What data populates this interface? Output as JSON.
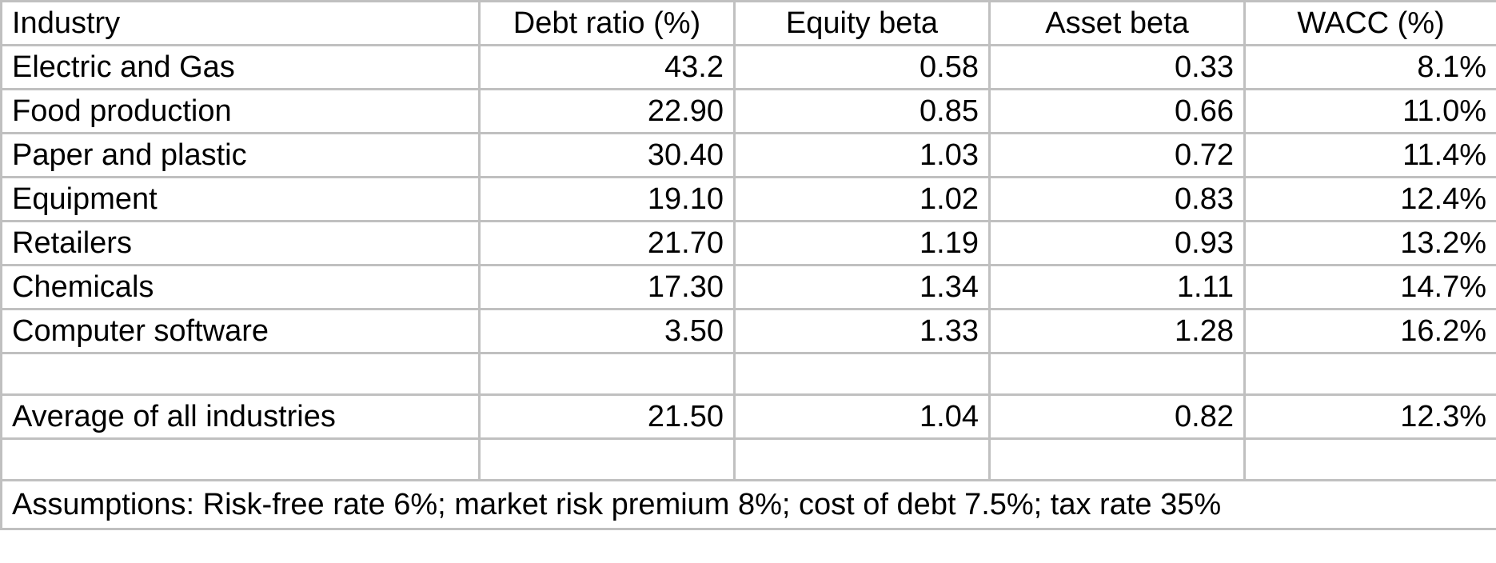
{
  "table": {
    "headers": [
      "Industry",
      "Debt ratio (%)",
      "Equity beta",
      "Asset beta",
      "WACC (%)"
    ],
    "rows": [
      [
        "Electric and Gas",
        "43.2",
        "0.58",
        "0.33",
        "8.1%"
      ],
      [
        "Food production",
        "22.90",
        "0.85",
        "0.66",
        "11.0%"
      ],
      [
        "Paper and plastic",
        "30.40",
        "1.03",
        "0.72",
        "11.4%"
      ],
      [
        "Equipment",
        "19.10",
        "1.02",
        "0.83",
        "12.4%"
      ],
      [
        "Retailers",
        "21.70",
        "1.19",
        "0.93",
        "13.2%"
      ],
      [
        "Chemicals",
        "17.30",
        "1.34",
        "1.11",
        "14.7%"
      ],
      [
        "Computer software",
        "3.50",
        "1.33",
        "1.28",
        "16.2%"
      ]
    ],
    "average_row": [
      "Average of all industries",
      "21.50",
      "1.04",
      "0.82",
      "12.3%"
    ],
    "note": "Assumptions: Risk-free rate 6%; market risk premium 8%; cost of debt 7.5%; tax rate 35%"
  },
  "colors": {
    "gridline": "#c0c0c0",
    "text": "#000000",
    "background": "#ffffff"
  }
}
